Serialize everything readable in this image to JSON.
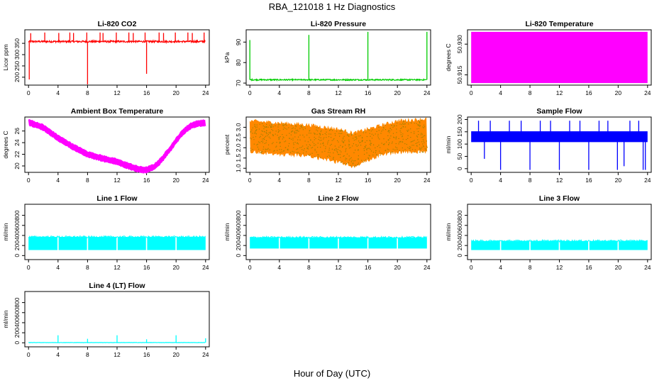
{
  "figure": {
    "title": "RBA_121018  1 Hz Diagnostics",
    "xlabel": "Hour of Day (UTC)"
  },
  "chart_data": [
    {
      "type": "line",
      "title": "Li-820 CO2",
      "ylabel": "Licor ppm",
      "color": "#ff0000",
      "xticks": [
        0,
        4,
        8,
        12,
        16,
        20,
        24
      ],
      "yticks": [
        200,
        250,
        300,
        350
      ],
      "xlim": [
        -0.5,
        24.5
      ],
      "ylim": [
        165,
        410
      ],
      "pattern": "flat",
      "baseline": 358,
      "noise": 8,
      "spikes": [
        {
          "x": 0.1,
          "y": 190
        },
        {
          "x": 0.3,
          "y": 395
        },
        {
          "x": 2.2,
          "y": 398
        },
        {
          "x": 4.1,
          "y": 396
        },
        {
          "x": 5.6,
          "y": 398
        },
        {
          "x": 6.1,
          "y": 396
        },
        {
          "x": 7.9,
          "y": 398
        },
        {
          "x": 8.0,
          "y": 165
        },
        {
          "x": 9.7,
          "y": 398
        },
        {
          "x": 10.1,
          "y": 396
        },
        {
          "x": 11.9,
          "y": 398
        },
        {
          "x": 13.6,
          "y": 398
        },
        {
          "x": 14.2,
          "y": 396
        },
        {
          "x": 15.8,
          "y": 398
        },
        {
          "x": 16.0,
          "y": 215
        },
        {
          "x": 17.7,
          "y": 398
        },
        {
          "x": 18.3,
          "y": 396
        },
        {
          "x": 19.9,
          "y": 398
        },
        {
          "x": 21.6,
          "y": 398
        },
        {
          "x": 22.2,
          "y": 396
        },
        {
          "x": 23.8,
          "y": 398
        }
      ]
    },
    {
      "type": "line",
      "title": "Li-820 Pressure",
      "ylabel": "kPa",
      "color": "#00cc00",
      "xticks": [
        0,
        4,
        8,
        12,
        16,
        20,
        24
      ],
      "yticks": [
        70,
        80,
        90
      ],
      "xlim": [
        -0.5,
        24.5
      ],
      "ylim": [
        69,
        96
      ],
      "pattern": "flat",
      "baseline": 71.6,
      "noise": 0.6,
      "spikes": [
        {
          "x": 0.0,
          "y": 91
        },
        {
          "x": 8.0,
          "y": 93.5
        },
        {
          "x": 16.0,
          "y": 95
        },
        {
          "x": 24.0,
          "y": 95
        }
      ]
    },
    {
      "type": "area",
      "title": "Li-820 Temperature",
      "ylabel": "degrees C",
      "color": "#ff00ff",
      "xticks": [
        0,
        4,
        8,
        12,
        16,
        20,
        24
      ],
      "yticks": [
        50.915,
        50.93
      ],
      "ytick_labels": [
        "50.915",
        "50.930"
      ],
      "xlim": [
        -0.5,
        24.5
      ],
      "ylim": [
        50.91,
        50.937
      ],
      "band": [
        50.911,
        50.936
      ]
    },
    {
      "type": "scatter",
      "title": "Ambient Box Temperature",
      "ylabel": "degrees C",
      "color": "#ff00ff",
      "xticks": [
        0,
        4,
        8,
        12,
        16,
        20,
        24
      ],
      "yticks": [
        20,
        22,
        24,
        26
      ],
      "xlim": [
        -0.5,
        24.5
      ],
      "ylim": [
        18.9,
        28.4
      ],
      "x": [
        0,
        2,
        4,
        6,
        8,
        10,
        12,
        14,
        15,
        16,
        17,
        18,
        19,
        20,
        21,
        22,
        23,
        24
      ],
      "y": [
        27.5,
        26.6,
        24.8,
        23.3,
        22.0,
        21.3,
        20.7,
        19.8,
        19.4,
        19.3,
        19.8,
        21.0,
        22.6,
        24.3,
        25.9,
        26.9,
        27.3,
        27.4
      ],
      "spread": 0.8
    },
    {
      "type": "scatter",
      "title": "Gas Stream RH",
      "ylabel": "percent",
      "color": "#ff8800",
      "xticks": [
        0,
        4,
        8,
        12,
        16,
        20,
        24
      ],
      "yticks": [
        1.0,
        1.5,
        2.0,
        2.5,
        3.0
      ],
      "ytick_labels": [
        "1.0",
        "1.5",
        "2.0",
        "2.5",
        "3.0"
      ],
      "xlim": [
        -0.5,
        24.5
      ],
      "ylim": [
        0.8,
        3.5
      ],
      "x": [
        0,
        4,
        8,
        12,
        14,
        16,
        18,
        20,
        24
      ],
      "upper": [
        3.3,
        3.2,
        3.1,
        2.9,
        2.7,
        2.9,
        3.1,
        3.3,
        3.4
      ],
      "lower": [
        1.8,
        1.7,
        1.6,
        1.3,
        1.1,
        1.4,
        1.7,
        1.8,
        1.8
      ]
    },
    {
      "type": "line",
      "title": "Sample Flow",
      "ylabel": "ml/min",
      "color": "#0000ff",
      "xticks": [
        0,
        4,
        8,
        12,
        16,
        20,
        24
      ],
      "yticks": [
        0,
        50,
        100,
        150,
        200
      ],
      "xlim": [
        -0.5,
        24.5
      ],
      "ylim": [
        -15,
        210
      ],
      "band": [
        108,
        152
      ],
      "spikes": [
        {
          "x": 1.0,
          "y": 195
        },
        {
          "x": 1.8,
          "y": 40
        },
        {
          "x": 2.6,
          "y": 195
        },
        {
          "x": 4.0,
          "y": -5
        },
        {
          "x": 5.2,
          "y": 195
        },
        {
          "x": 6.8,
          "y": 195
        },
        {
          "x": 8.0,
          "y": -5
        },
        {
          "x": 9.4,
          "y": 195
        },
        {
          "x": 10.8,
          "y": 195
        },
        {
          "x": 12.0,
          "y": -5
        },
        {
          "x": 13.4,
          "y": 195
        },
        {
          "x": 14.8,
          "y": 195
        },
        {
          "x": 16.0,
          "y": -5
        },
        {
          "x": 17.4,
          "y": 195
        },
        {
          "x": 18.6,
          "y": 195
        },
        {
          "x": 19.9,
          "y": -5
        },
        {
          "x": 20.8,
          "y": 10
        },
        {
          "x": 21.6,
          "y": 195
        },
        {
          "x": 22.8,
          "y": 195
        },
        {
          "x": 23.4,
          "y": -5
        },
        {
          "x": 23.7,
          "y": -5
        }
      ]
    },
    {
      "type": "area",
      "title": "Line 1 Flow",
      "ylabel": "ml/min",
      "color": "#00ffff",
      "xticks": [
        0,
        4,
        8,
        12,
        16,
        20,
        24
      ],
      "yticks": [
        0,
        200,
        400,
        600,
        800
      ],
      "xlim": [
        -0.5,
        24.5
      ],
      "ylim": [
        -80,
        1020
      ],
      "band": [
        110,
        370
      ],
      "gaps": [
        4,
        8,
        12,
        16,
        20
      ]
    },
    {
      "type": "area",
      "title": "Line 2 Flow",
      "ylabel": "ml/min",
      "color": "#00ffff",
      "xticks": [
        0,
        4,
        8,
        12,
        16,
        20,
        24
      ],
      "yticks": [
        0,
        200,
        400,
        600,
        800
      ],
      "xlim": [
        -0.5,
        24.5
      ],
      "ylim": [
        -80,
        1020
      ],
      "band": [
        140,
        360
      ],
      "gaps": [
        4,
        8,
        12,
        16,
        20
      ]
    },
    {
      "type": "area",
      "title": "Line 3 Flow",
      "ylabel": "ml/min",
      "color": "#00ffff",
      "xticks": [
        0,
        4,
        8,
        12,
        16,
        20,
        24
      ],
      "yticks": [
        0,
        200,
        400,
        600,
        800
      ],
      "xlim": [
        -0.5,
        24.5
      ],
      "ylim": [
        -80,
        1020
      ],
      "band": [
        110,
        290
      ],
      "gaps": [
        4,
        8,
        12,
        16,
        20
      ]
    },
    {
      "type": "line",
      "title": "Line 4 (LT) Flow",
      "ylabel": "ml/min",
      "color": "#00ffff",
      "xticks": [
        0,
        4,
        8,
        12,
        16,
        20,
        24
      ],
      "yticks": [
        0,
        200,
        400,
        600,
        800
      ],
      "xlim": [
        -0.5,
        24.5
      ],
      "ylim": [
        -80,
        1020
      ],
      "pattern": "flat",
      "baseline": 5,
      "noise": 6,
      "spikes": [
        {
          "x": 4.0,
          "y": 150
        },
        {
          "x": 8.0,
          "y": 80
        },
        {
          "x": 12.0,
          "y": 150
        },
        {
          "x": 16.0,
          "y": 70
        },
        {
          "x": 20.0,
          "y": 150
        },
        {
          "x": 24.0,
          "y": 90
        }
      ]
    }
  ]
}
